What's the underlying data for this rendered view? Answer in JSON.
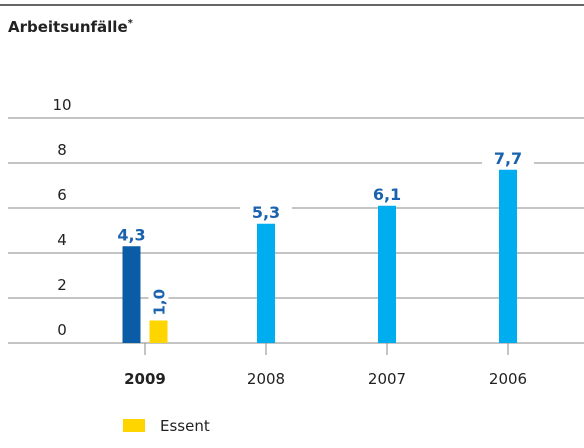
{
  "chart_data": {
    "type": "bar",
    "title": "Arbeitsunfälle",
    "title_mark": "*",
    "categories": [
      "2009",
      "2008",
      "2007",
      "2006"
    ],
    "highlight_index": 0,
    "series": [
      {
        "colors": [
          "#0b5ca6",
          "#00aeef",
          "#00aeef",
          "#00aeef"
        ],
        "values": [
          4.3,
          5.3,
          6.1,
          7.7
        ],
        "value_labels": [
          "4,3",
          "5,3",
          "6,1",
          "7,7"
        ]
      },
      {
        "name": "Essent",
        "color": "#ffd500",
        "values": [
          1.0,
          null,
          null,
          null
        ],
        "value_labels": [
          "1,0",
          null,
          null,
          null
        ],
        "label_rotation": -90
      }
    ],
    "value_label_color": "#1a62ad",
    "ylim": [
      0,
      10
    ],
    "yticks": [
      0,
      2,
      4,
      6,
      8,
      10
    ],
    "grid": true
  }
}
